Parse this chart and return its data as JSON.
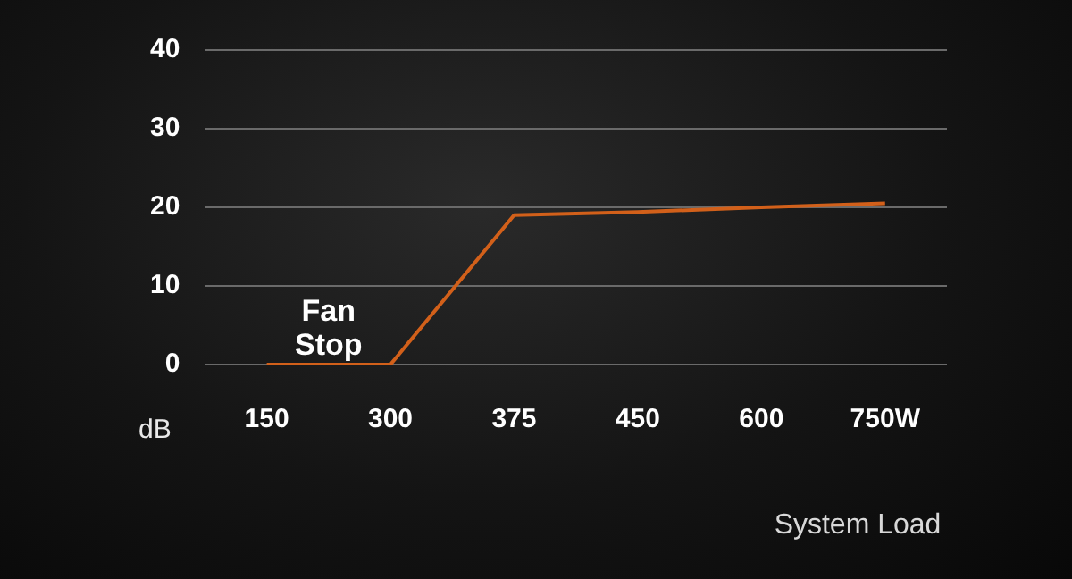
{
  "chart_data": {
    "type": "line",
    "xlabel": "System Load",
    "ylabel": "dB",
    "categories": [
      "150",
      "300",
      "375",
      "450",
      "600",
      "750W"
    ],
    "series": [
      {
        "color": "#d2601a",
        "values": [
          0,
          0,
          19,
          19.4,
          20,
          20.5
        ]
      }
    ],
    "ylim": [
      0,
      40
    ],
    "yticks": [
      0,
      10,
      20,
      30,
      40
    ],
    "grid": "y",
    "legend": false,
    "marker": "none",
    "line_style": "solid",
    "annotations": [
      "Fan\nStop"
    ]
  }
}
